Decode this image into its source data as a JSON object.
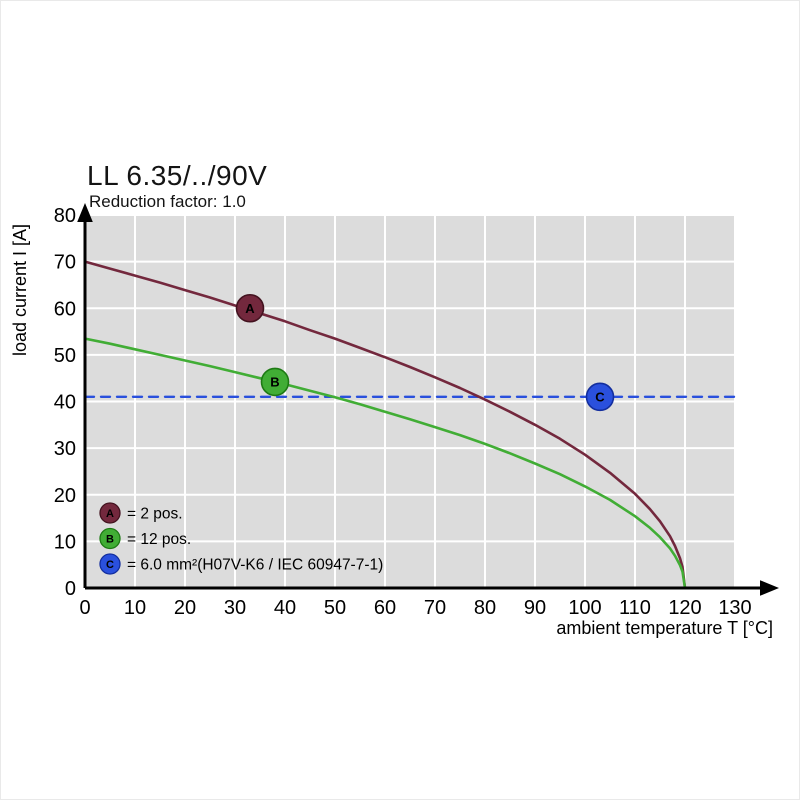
{
  "chart_data": {
    "type": "line",
    "title": "LL 6.35/../90V",
    "subtitle": "Reduction factor: 1.0",
    "xlabel": "ambient temperature T [°C]",
    "ylabel": "load current I [A]",
    "xlim": [
      0,
      130
    ],
    "ylim": [
      0,
      80
    ],
    "xticks": [
      0,
      10,
      20,
      30,
      40,
      50,
      60,
      70,
      80,
      90,
      100,
      110,
      120,
      130
    ],
    "yticks": [
      0,
      10,
      20,
      30,
      40,
      50,
      60,
      70,
      80
    ],
    "grid": true,
    "legend_position": "inside-bottom-left",
    "colors": {
      "plot_bg": "#dcdcdc",
      "grid": "#ffffff",
      "axis": "#000000"
    },
    "series": [
      {
        "letter": "A",
        "legend_label": "= 2 pos.",
        "color": "#73283d",
        "marker_stroke": "#43121f",
        "dashed": false,
        "marker": {
          "x": 33,
          "y": 60
        },
        "points": [
          [
            0,
            70
          ],
          [
            5,
            68.5
          ],
          [
            10,
            67
          ],
          [
            15,
            65.5
          ],
          [
            20,
            63.9
          ],
          [
            25,
            62.3
          ],
          [
            30,
            60.6
          ],
          [
            35,
            58.9
          ],
          [
            40,
            57.2
          ],
          [
            45,
            55.3
          ],
          [
            50,
            53.5
          ],
          [
            55,
            51.5
          ],
          [
            60,
            49.5
          ],
          [
            65,
            47.4
          ],
          [
            70,
            45.2
          ],
          [
            75,
            42.9
          ],
          [
            80,
            40.4
          ],
          [
            85,
            37.8
          ],
          [
            90,
            35
          ],
          [
            95,
            32
          ],
          [
            100,
            28.6
          ],
          [
            105,
            24.7
          ],
          [
            110,
            20.2
          ],
          [
            113,
            16.9
          ],
          [
            115,
            14.3
          ],
          [
            117,
            11.1
          ],
          [
            118,
            9
          ],
          [
            119,
            6.4
          ],
          [
            119.5,
            4.5
          ],
          [
            120,
            0
          ]
        ]
      },
      {
        "letter": "B",
        "legend_label": "= 12 pos.",
        "color": "#41ad35",
        "marker_stroke": "#1e7a14",
        "dashed": false,
        "marker": {
          "x": 38,
          "y": 44.2
        },
        "points": [
          [
            0,
            53.5
          ],
          [
            5,
            52.4
          ],
          [
            10,
            51.2
          ],
          [
            15,
            50
          ],
          [
            20,
            48.8
          ],
          [
            25,
            47.6
          ],
          [
            30,
            46.3
          ],
          [
            35,
            45
          ],
          [
            40,
            43.7
          ],
          [
            45,
            42.3
          ],
          [
            50,
            40.9
          ],
          [
            55,
            39.4
          ],
          [
            60,
            37.8
          ],
          [
            65,
            36.2
          ],
          [
            70,
            34.5
          ],
          [
            75,
            32.8
          ],
          [
            80,
            30.9
          ],
          [
            85,
            28.9
          ],
          [
            90,
            26.7
          ],
          [
            95,
            24.4
          ],
          [
            100,
            21.8
          ],
          [
            105,
            18.9
          ],
          [
            110,
            15.4
          ],
          [
            113,
            12.9
          ],
          [
            115,
            10.9
          ],
          [
            117,
            8.5
          ],
          [
            118,
            6.9
          ],
          [
            119,
            4.9
          ],
          [
            119.5,
            3.5
          ],
          [
            120,
            0
          ]
        ]
      },
      {
        "letter": "C",
        "legend_label": "= 6.0 mm²(H07V-K6 / IEC 60947-7-1)",
        "color": "#2a50dd",
        "marker_stroke": "#132e9e",
        "dashed": true,
        "threshold_value": 41,
        "marker": {
          "x": 103,
          "y": 41
        },
        "points": [
          [
            0,
            41
          ],
          [
            130,
            41
          ]
        ]
      }
    ]
  }
}
